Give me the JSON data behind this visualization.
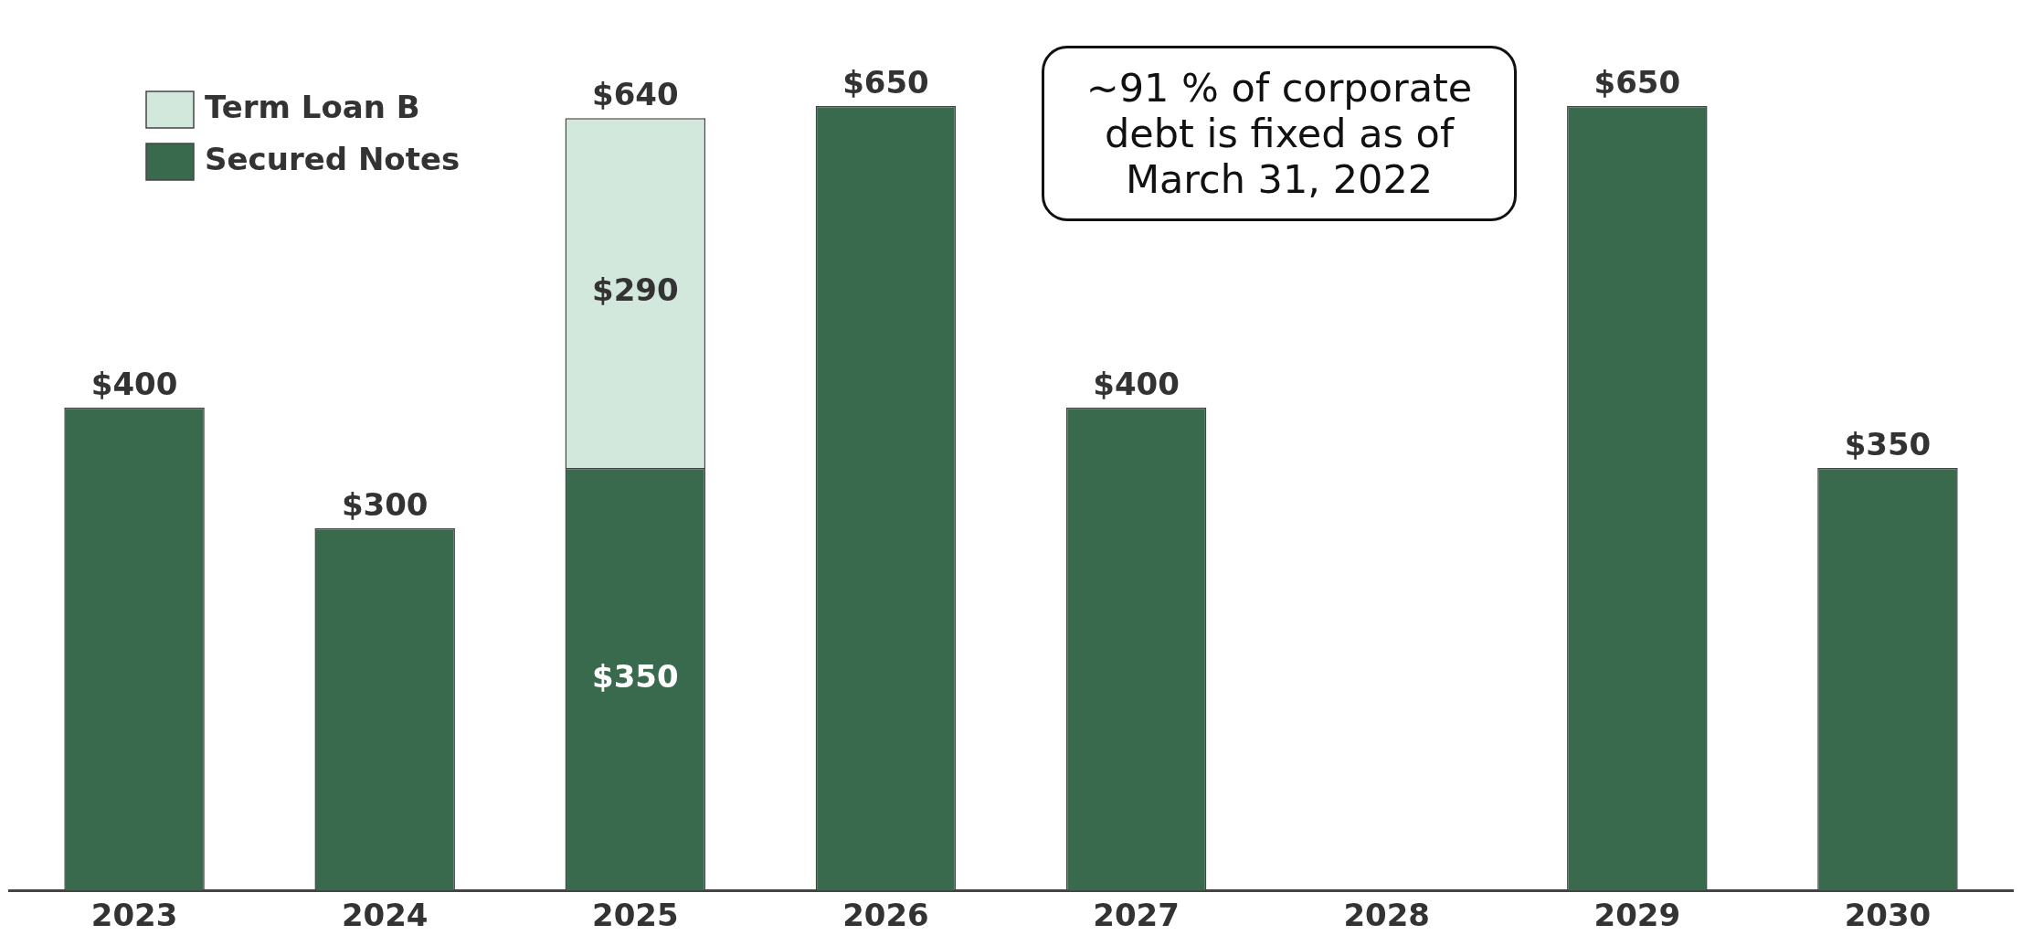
{
  "chart_data": {
    "type": "bar",
    "stacked": true,
    "categories": [
      "2023",
      "2024",
      "2025",
      "2026",
      "2027",
      "2028",
      "2029",
      "2030"
    ],
    "series": [
      {
        "name": "Secured Notes",
        "color": "#3a6a4e",
        "values": [
          400,
          300,
          350,
          650,
          400,
          null,
          650,
          350
        ],
        "value_labels": [
          "$400",
          "$300",
          "$350",
          "$650",
          "$400",
          null,
          "$650",
          "$350"
        ]
      },
      {
        "name": "Term Loan B",
        "color": "#d3e8dc",
        "values": [
          null,
          null,
          290,
          null,
          null,
          null,
          null,
          null
        ],
        "value_labels": [
          null,
          null,
          "$290",
          null,
          null,
          null,
          null,
          null
        ]
      }
    ],
    "totals": [
      null,
      null,
      "$640",
      null,
      null,
      null,
      null,
      null
    ],
    "legend": "top left",
    "grid": false,
    "annotations": [
      "~91 % of corporate debt is fixed as of March 31, 2022"
    ]
  }
}
